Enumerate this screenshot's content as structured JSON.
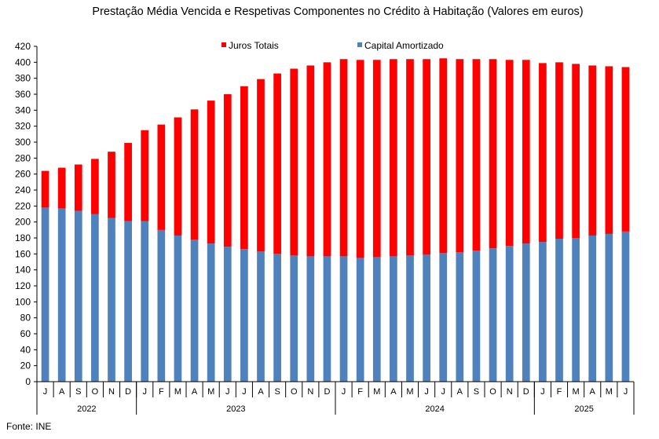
{
  "chart_data": {
    "type": "bar",
    "stacked": true,
    "title": "Prestação Média Vencida e Respetivas Componentes  no Crédito à Habitação (Valores em euros)",
    "source": "Fonte: INE",
    "ylim": [
      0,
      420
    ],
    "ytick_step": 20,
    "grid": false,
    "legend_position": "top",
    "categories": [
      "J",
      "A",
      "S",
      "O",
      "N",
      "D",
      "J",
      "F",
      "M",
      "A",
      "M",
      "J",
      "J",
      "A",
      "S",
      "O",
      "N",
      "D",
      "J",
      "F",
      "M",
      "A",
      "M",
      "J",
      "J",
      "A",
      "S",
      "O",
      "N",
      "D",
      "J",
      "F",
      "M",
      "A",
      "M",
      "J"
    ],
    "year_groups": [
      {
        "label": "2022",
        "count": 6
      },
      {
        "label": "2023",
        "count": 12
      },
      {
        "label": "2024",
        "count": 12
      },
      {
        "label": "2025",
        "count": 6
      }
    ],
    "series": [
      {
        "name": "Capital Amortizado",
        "color": "#4f81bd",
        "values": [
          218,
          217,
          214,
          210,
          205,
          201,
          201,
          190,
          183,
          178,
          173,
          169,
          166,
          163,
          160,
          158,
          157,
          157,
          157,
          155,
          156,
          157,
          158,
          159,
          161,
          162,
          164,
          167,
          170,
          173,
          175,
          179,
          180,
          183,
          185,
          188
        ]
      },
      {
        "name": "Juros Totais",
        "color": "#ff0000",
        "values": [
          46,
          51,
          58,
          69,
          83,
          98,
          114,
          132,
          148,
          163,
          179,
          191,
          204,
          216,
          226,
          234,
          239,
          243,
          247,
          248,
          247,
          247,
          246,
          245,
          244,
          242,
          240,
          237,
          233,
          230,
          224,
          221,
          218,
          213,
          210,
          206
        ]
      }
    ]
  }
}
